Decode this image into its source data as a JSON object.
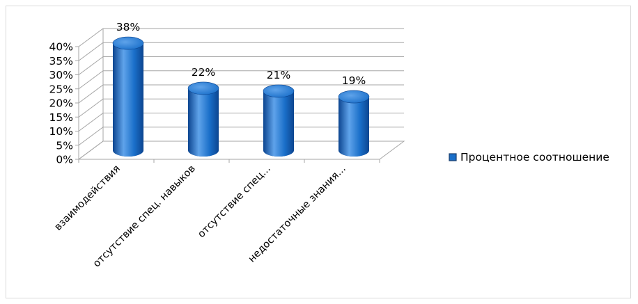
{
  "chart_data": {
    "type": "bar",
    "categories": [
      "взаимодействия",
      "отсутствие спец. навыков",
      "отсутствие  спец...",
      "недостаточные знания..."
    ],
    "series": [
      {
        "name": "Процентное соотношение",
        "values": [
          38,
          22,
          21,
          19
        ],
        "data_labels": [
          "38%",
          "22%",
          "21%",
          "19%"
        ]
      }
    ],
    "yticks": [
      "0%",
      "5%",
      "10%",
      "15%",
      "20%",
      "25%",
      "30%",
      "35%",
      "40%"
    ],
    "ylim": [
      0,
      40
    ],
    "grid": true,
    "legend_position": "right",
    "colors": {
      "bar_main": "#1a6fc9",
      "bar_light": "#5fa3ea",
      "bar_dark": "#0c4590",
      "grid": "#a6a6a6"
    }
  }
}
